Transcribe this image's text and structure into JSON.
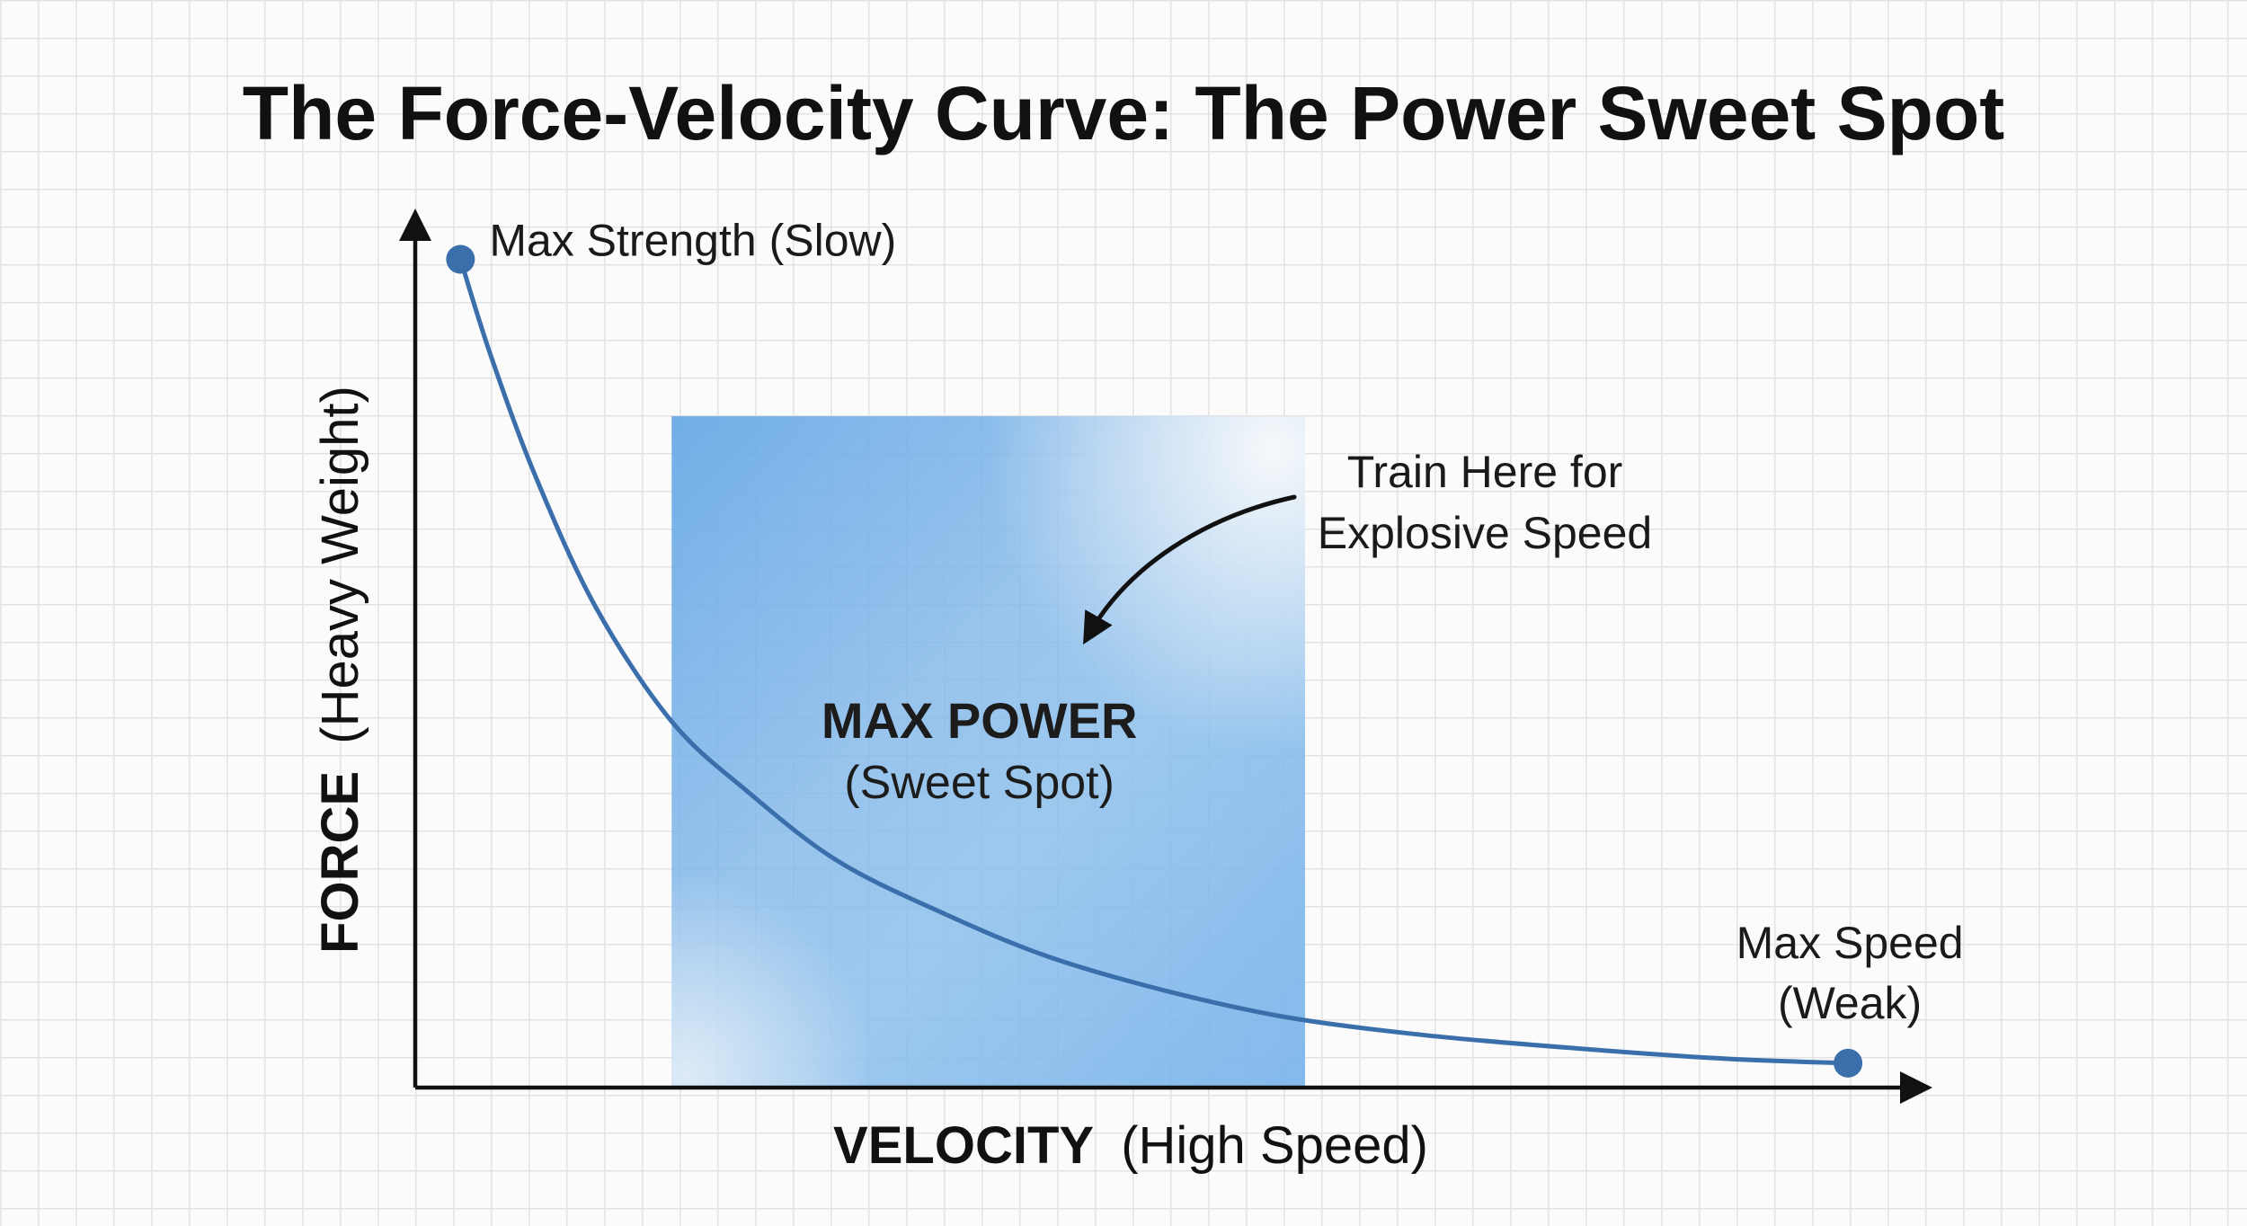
{
  "chart_data": {
    "type": "line",
    "title": "The Force-Velocity Curve: The Power Sweet Spot",
    "xlabel": {
      "bold": "VELOCITY",
      "normal": "(High Speed)"
    },
    "ylabel": {
      "bold": "FORCE",
      "normal": "(Heavy Weight)"
    },
    "xlim": [
      0,
      100
    ],
    "ylim": [
      0,
      100
    ],
    "grid": true,
    "series": [
      {
        "name": "Force-Velocity Curve",
        "color": "#3a6fab",
        "x": [
          3,
          5,
          8,
          12,
          17,
          22,
          28,
          35,
          42,
          50,
          58,
          67,
          77,
          87,
          95
        ],
        "y": [
          95,
          84,
          70,
          55,
          42,
          34,
          26,
          20,
          15,
          11,
          8,
          6,
          4.5,
          3.3,
          2.8
        ]
      }
    ],
    "highlight_region": {
      "label": "MAX POWER",
      "sublabel": "(Sweet Spot)",
      "x_range": [
        17,
        59
      ],
      "y_range": [
        0,
        77
      ],
      "color": "#6aaae6"
    },
    "points": [
      {
        "name": "max-strength",
        "x": 3,
        "y": 95,
        "label": "Max Strength (Slow)"
      },
      {
        "name": "max-speed",
        "x": 95,
        "y": 2.8,
        "label_lines": [
          "Max Speed",
          "(Weak)"
        ]
      }
    ],
    "annotation": {
      "lines": [
        "Train Here for",
        "Explosive Speed"
      ]
    }
  }
}
